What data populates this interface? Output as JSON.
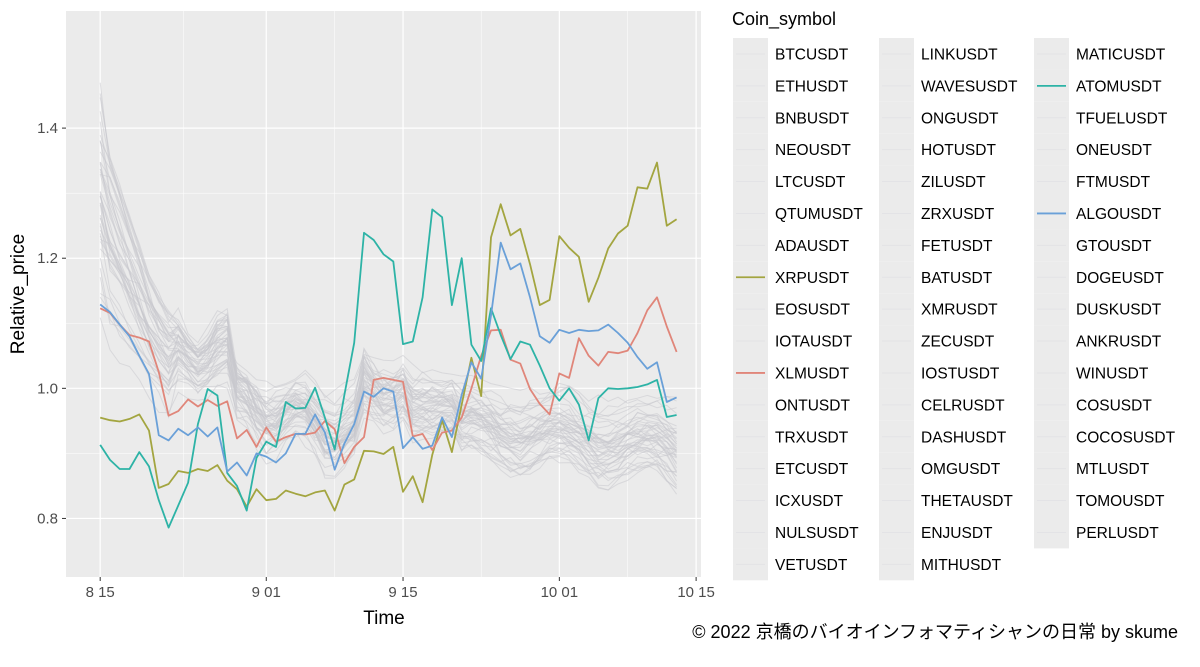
{
  "caption": "© 2022 京橋のバイオインフォマティシャンの日常 by skume",
  "chart_data": {
    "type": "line",
    "xlabel": "Time",
    "ylabel": "Relative_price",
    "legend_title": "Coin_symbol",
    "legend_position": "right",
    "grid": true,
    "x_ticks": [
      {
        "value": 0,
        "label": "8 15"
      },
      {
        "value": 17,
        "label": "9 01"
      },
      {
        "value": 31,
        "label": "9 15"
      },
      {
        "value": 47,
        "label": "10 01"
      },
      {
        "value": 61,
        "label": "10 15"
      }
    ],
    "x_range": [
      -3.5,
      61.5
    ],
    "y_ticks": [
      0.8,
      1.0,
      1.2,
      1.4
    ],
    "ylim": [
      0.71,
      1.58
    ],
    "legend_columns": [
      [
        "BTCUSDT",
        "ETHUSDT",
        "BNBUSDT",
        "NEOUSDT",
        "LTCUSDT",
        "QTUMUSDT",
        "ADAUSDT",
        "XRPUSDT",
        "EOSUSDT",
        "IOTAUSDT",
        "XLMUSDT",
        "ONTUSDT",
        "TRXUSDT",
        "ETCUSDT",
        "ICXUSDT",
        "NULSUSDT",
        "VETUSDT"
      ],
      [
        "LINKUSDT",
        "WAVESUSDT",
        "ONGUSDT",
        "HOTUSDT",
        "ZILUSDT",
        "ZRXUSDT",
        "FETUSDT",
        "BATUSDT",
        "XMRUSDT",
        "ZECUSDT",
        "IOSTUSDT",
        "CELRUSDT",
        "DASHUSDT",
        "OMGUSDT",
        "THETAUSDT",
        "ENJUSDT",
        "MITHUSDT"
      ],
      [
        "MATICUSDT",
        "ATOMUSDT",
        "TFUELUSDT",
        "ONEUSDT",
        "FTMUSDT",
        "ALGOUSDT",
        "GTOUSDT",
        "DOGEUSDT",
        "DUSKUSDT",
        "ANKRUSDT",
        "WINUSDT",
        "COSUSDT",
        "COCOSUSDT",
        "MTLUSDT",
        "TOMOUSDT",
        "PERLUSDT"
      ]
    ],
    "highlighted": [
      {
        "name": "XRPUSDT",
        "color": "#a3a540",
        "values": [
          0.955,
          0.951,
          0.949,
          0.953,
          0.96,
          0.935,
          0.847,
          0.853,
          0.873,
          0.87,
          0.876,
          0.873,
          0.882,
          0.858,
          0.845,
          0.818,
          0.845,
          0.828,
          0.83,
          0.843,
          0.838,
          0.834,
          0.84,
          0.843,
          0.812,
          0.852,
          0.86,
          0.904,
          0.903,
          0.899,
          0.91,
          0.841,
          0.865,
          0.825,
          0.898,
          0.951,
          0.902,
          0.975,
          1.047,
          0.988,
          1.232,
          1.283,
          1.235,
          1.245,
          1.191,
          1.128,
          1.136,
          1.234,
          1.216,
          1.202,
          1.133,
          1.17,
          1.215,
          1.238,
          1.25,
          1.309,
          1.307,
          1.347,
          1.25,
          1.26
        ]
      },
      {
        "name": "XLMUSDT",
        "color": "#e0867a",
        "values": [
          1.123,
          1.116,
          1.098,
          1.082,
          1.078,
          1.072,
          1.025,
          0.958,
          0.965,
          0.983,
          0.972,
          0.982,
          0.973,
          0.98,
          0.923,
          0.936,
          0.91,
          0.94,
          0.918,
          0.925,
          0.93,
          0.929,
          0.932,
          0.95,
          0.937,
          0.885,
          0.91,
          0.925,
          1.013,
          1.016,
          1.013,
          1.01,
          0.926,
          0.93,
          0.905,
          0.932,
          0.935,
          0.955,
          1.0,
          1.05,
          1.089,
          1.09,
          1.044,
          1.038,
          0.999,
          0.976,
          0.96,
          1.023,
          1.016,
          1.077,
          1.05,
          1.035,
          1.056,
          1.054,
          1.058,
          1.085,
          1.12,
          1.14,
          1.095,
          1.056
        ]
      },
      {
        "name": "ATOMUSDT",
        "color": "#2db3a6",
        "values": [
          0.913,
          0.89,
          0.876,
          0.876,
          0.902,
          0.88,
          0.828,
          0.786,
          0.82,
          0.855,
          0.945,
          0.999,
          0.989,
          0.87,
          0.85,
          0.812,
          0.893,
          0.918,
          0.91,
          0.979,
          0.969,
          0.97,
          1.001,
          0.955,
          0.906,
          0.99,
          1.07,
          1.239,
          1.228,
          1.206,
          1.195,
          1.068,
          1.072,
          1.14,
          1.275,
          1.263,
          1.128,
          1.2,
          1.067,
          1.042,
          1.123,
          1.082,
          1.045,
          1.072,
          1.067,
          1.035,
          1.0,
          0.981,
          1.0,
          0.975,
          0.92,
          0.985,
          1.0,
          0.999,
          1.0,
          1.002,
          1.006,
          1.013,
          0.956,
          0.959
        ]
      },
      {
        "name": "ALGOUSDT",
        "color": "#6aa0d8",
        "values": [
          1.129,
          1.117,
          1.098,
          1.08,
          1.05,
          1.022,
          0.928,
          0.92,
          0.938,
          0.928,
          0.94,
          0.926,
          0.94,
          0.872,
          0.886,
          0.866,
          0.9,
          0.895,
          0.886,
          0.9,
          0.93,
          0.93,
          0.96,
          0.932,
          0.875,
          0.915,
          0.945,
          0.995,
          0.987,
          1.0,
          0.995,
          0.908,
          0.925,
          0.907,
          0.912,
          0.955,
          0.925,
          0.99,
          1.04,
          1.015,
          1.112,
          1.224,
          1.183,
          1.192,
          1.14,
          1.08,
          1.07,
          1.09,
          1.085,
          1.09,
          1.088,
          1.089,
          1.098,
          1.085,
          1.07,
          1.048,
          1.03,
          1.04,
          0.979,
          0.986
        ]
      }
    ]
  }
}
